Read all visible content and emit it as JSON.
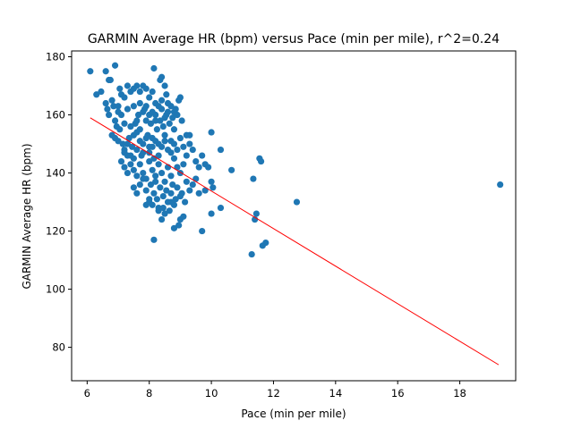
{
  "chart_data": {
    "type": "scatter",
    "title": "GARMIN Average HR (bpm) versus Pace (min per mile), r^2=0.24",
    "xlabel": "Pace (min per mile)",
    "ylabel": "GARMIN Average HR (bpm)",
    "xlim": [
      5.5,
      19.8
    ],
    "ylim": [
      68.5,
      182
    ],
    "x_ticks": [
      6,
      8,
      10,
      12,
      14,
      16,
      18
    ],
    "y_ticks": [
      80,
      100,
      120,
      140,
      160,
      180
    ],
    "grid": false,
    "legend": "none",
    "series": [
      {
        "color": "#1f77b4",
        "points": [
          [
            6.1,
            175
          ],
          [
            6.3,
            167
          ],
          [
            6.45,
            168
          ],
          [
            6.6,
            175
          ],
          [
            6.7,
            172
          ],
          [
            6.75,
            172
          ],
          [
            6.9,
            177
          ],
          [
            6.6,
            164
          ],
          [
            6.65,
            162
          ],
          [
            6.7,
            160
          ],
          [
            6.8,
            165
          ],
          [
            6.85,
            163
          ],
          [
            6.9,
            158
          ],
          [
            6.95,
            156
          ],
          [
            7.0,
            161
          ],
          [
            7.05,
            169
          ],
          [
            7.1,
            167
          ],
          [
            7.2,
            166
          ],
          [
            7.3,
            170
          ],
          [
            7.4,
            168
          ],
          [
            7.5,
            169
          ],
          [
            7.6,
            170
          ],
          [
            7.7,
            168
          ],
          [
            7.8,
            170
          ],
          [
            7.9,
            169
          ],
          [
            8.0,
            166
          ],
          [
            8.1,
            168
          ],
          [
            8.2,
            164
          ],
          [
            8.35,
            172
          ],
          [
            8.4,
            173
          ],
          [
            8.5,
            170
          ],
          [
            8.55,
            167
          ],
          [
            8.15,
            176
          ],
          [
            6.8,
            153
          ],
          [
            6.9,
            152
          ],
          [
            7.0,
            151
          ],
          [
            7.05,
            155
          ],
          [
            7.15,
            150
          ],
          [
            7.2,
            148
          ],
          [
            7.3,
            146
          ],
          [
            7.35,
            152
          ],
          [
            7.45,
            149
          ],
          [
            7.5,
            145
          ],
          [
            7.55,
            157
          ],
          [
            7.6,
            154
          ],
          [
            7.65,
            160
          ],
          [
            7.7,
            155
          ],
          [
            7.75,
            146
          ],
          [
            7.8,
            150
          ],
          [
            7.85,
            162
          ],
          [
            7.9,
            158
          ],
          [
            7.95,
            153
          ],
          [
            8.0,
            149
          ],
          [
            8.05,
            157
          ],
          [
            8.1,
            152
          ],
          [
            8.15,
            145
          ],
          [
            8.2,
            160
          ],
          [
            8.25,
            155
          ],
          [
            8.3,
            150
          ],
          [
            8.35,
            158
          ],
          [
            8.4,
            162
          ],
          [
            8.45,
            156
          ],
          [
            8.5,
            153
          ],
          [
            8.55,
            160
          ],
          [
            8.6,
            164
          ],
          [
            8.65,
            157
          ],
          [
            8.7,
            151
          ],
          [
            8.75,
            159
          ],
          [
            8.8,
            155
          ],
          [
            8.85,
            162
          ],
          [
            8.9,
            160
          ],
          [
            8.95,
            165
          ],
          [
            9.0,
            166
          ],
          [
            9.05,
            158
          ],
          [
            7.0,
            163
          ],
          [
            7.1,
            160
          ],
          [
            7.2,
            157
          ],
          [
            7.3,
            162
          ],
          [
            7.4,
            156
          ],
          [
            7.5,
            163
          ],
          [
            7.6,
            158
          ],
          [
            7.7,
            164
          ],
          [
            7.8,
            161
          ],
          [
            7.9,
            163
          ],
          [
            8.0,
            160
          ],
          [
            8.1,
            161
          ],
          [
            8.2,
            158
          ],
          [
            8.3,
            163
          ],
          [
            8.4,
            165
          ],
          [
            8.5,
            159
          ],
          [
            8.6,
            161
          ],
          [
            8.7,
            163
          ],
          [
            8.8,
            161
          ],
          [
            7.1,
            144
          ],
          [
            7.2,
            142
          ],
          [
            7.3,
            140
          ],
          [
            7.4,
            143
          ],
          [
            7.5,
            141
          ],
          [
            7.6,
            139
          ],
          [
            7.7,
            143
          ],
          [
            7.8,
            140
          ],
          [
            7.9,
            138
          ],
          [
            8.0,
            144
          ],
          [
            8.1,
            141
          ],
          [
            8.2,
            139
          ],
          [
            8.3,
            143
          ],
          [
            8.4,
            140
          ],
          [
            8.5,
            137
          ],
          [
            8.6,
            142
          ],
          [
            8.7,
            139
          ],
          [
            8.8,
            145
          ],
          [
            8.9,
            142
          ],
          [
            9.0,
            140
          ],
          [
            9.1,
            143
          ],
          [
            9.2,
            146
          ],
          [
            9.3,
            150
          ],
          [
            9.4,
            148
          ],
          [
            9.5,
            144
          ],
          [
            9.6,
            142
          ],
          [
            9.7,
            146
          ],
          [
            9.8,
            143
          ],
          [
            9.9,
            142
          ],
          [
            10.0,
            137
          ],
          [
            7.2,
            147
          ],
          [
            7.3,
            150
          ],
          [
            7.4,
            146
          ],
          [
            7.5,
            153
          ],
          [
            7.6,
            148
          ],
          [
            7.7,
            151
          ],
          [
            7.8,
            147
          ],
          [
            7.9,
            152
          ],
          [
            8.0,
            147
          ],
          [
            8.1,
            149
          ],
          [
            8.2,
            151
          ],
          [
            8.3,
            146
          ],
          [
            8.4,
            149
          ],
          [
            8.5,
            151
          ],
          [
            8.6,
            148
          ],
          [
            8.7,
            147
          ],
          [
            8.8,
            150
          ],
          [
            8.9,
            148
          ],
          [
            9.0,
            152
          ],
          [
            9.1,
            149
          ],
          [
            9.2,
            153
          ],
          [
            9.3,
            153
          ],
          [
            7.5,
            135
          ],
          [
            7.6,
            133
          ],
          [
            7.7,
            136
          ],
          [
            7.8,
            138
          ],
          [
            7.9,
            134
          ],
          [
            8.0,
            131
          ],
          [
            8.05,
            136
          ],
          [
            8.1,
            129
          ],
          [
            8.15,
            133
          ],
          [
            8.2,
            137
          ],
          [
            8.25,
            131
          ],
          [
            8.3,
            128
          ],
          [
            8.35,
            135
          ],
          [
            8.4,
            124
          ],
          [
            8.45,
            132
          ],
          [
            8.5,
            126
          ],
          [
            8.55,
            134
          ],
          [
            8.6,
            130
          ],
          [
            8.65,
            127
          ],
          [
            8.7,
            133
          ],
          [
            8.75,
            136
          ],
          [
            8.8,
            129
          ],
          [
            8.85,
            131
          ],
          [
            8.9,
            135
          ],
          [
            8.95,
            122
          ],
          [
            9.0,
            124
          ],
          [
            9.05,
            133
          ],
          [
            9.1,
            125
          ],
          [
            9.15,
            130
          ],
          [
            9.2,
            137
          ],
          [
            9.3,
            134
          ],
          [
            9.4,
            136
          ],
          [
            9.5,
            138
          ],
          [
            9.6,
            133
          ],
          [
            9.8,
            134
          ],
          [
            10.0,
            126
          ],
          [
            10.05,
            135
          ],
          [
            7.9,
            129
          ],
          [
            8.0,
            130
          ],
          [
            8.3,
            127
          ],
          [
            8.45,
            128
          ],
          [
            8.7,
            130
          ],
          [
            8.8,
            121
          ],
          [
            9.0,
            132
          ],
          [
            8.15,
            117
          ],
          [
            9.7,
            120
          ],
          [
            10.3,
            128
          ],
          [
            10.0,
            154
          ],
          [
            10.3,
            148
          ],
          [
            10.65,
            141
          ],
          [
            11.35,
            138
          ],
          [
            11.4,
            124
          ],
          [
            11.45,
            126
          ],
          [
            11.55,
            145
          ],
          [
            11.6,
            144
          ],
          [
            11.3,
            112
          ],
          [
            11.65,
            115
          ],
          [
            11.75,
            116
          ],
          [
            12.75,
            130
          ],
          [
            19.3,
            136
          ]
        ]
      }
    ],
    "trendline": {
      "color": "#ff0000",
      "x": [
        6.1,
        19.25
      ],
      "y": [
        159,
        74
      ]
    }
  }
}
